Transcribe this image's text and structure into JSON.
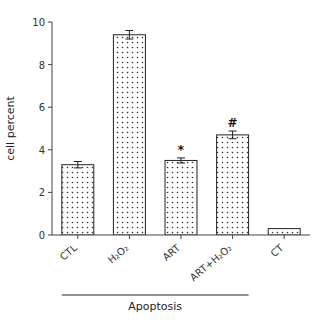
{
  "chart_data": {
    "type": "bar",
    "categories": [
      "CTL",
      "H₂O₂",
      "ART",
      "ART+H₂O₂",
      "CT"
    ],
    "values": [
      3.3,
      9.4,
      3.5,
      4.7,
      0.3
    ],
    "errors": [
      0.15,
      0.2,
      0.12,
      0.18,
      null
    ],
    "annotations": [
      null,
      null,
      "*",
      "#",
      null
    ],
    "ylabel": "cell percent",
    "xlabel": "Apoptosis",
    "color": "#ffffff",
    "ylim": [
      0,
      10
    ],
    "yticks": [
      0,
      2,
      4,
      6,
      8,
      10
    ],
    "grid": false
  }
}
